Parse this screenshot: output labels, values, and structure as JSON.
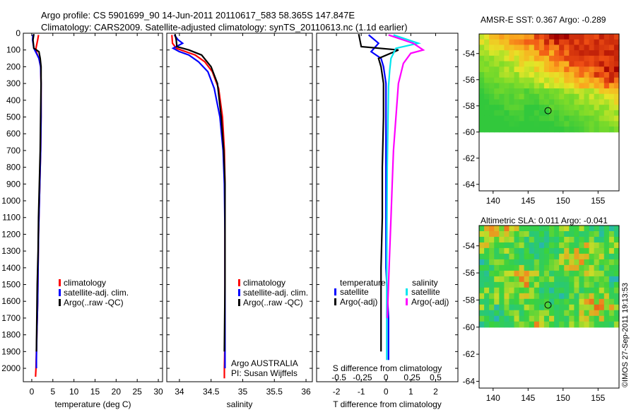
{
  "header": {
    "line1": "Argo profile: CS 5901699_90 14-Jun-2011 20110617_583 58.365S 147.847E",
    "line2": "Climatology: CARS2009. Satellite-adjusted climatology: synTS_20110613.nc (1.1d earlier)"
  },
  "footer": {
    "stamp": "©IMOS 27-Sep-2011 19:13:53",
    "credit1": "Argo AUSTRALIA",
    "credit2": "PI: Susan Wijffels"
  },
  "colors": {
    "climatology": "#ff0000",
    "satellite": "#0000ff",
    "argo": "#000000",
    "sat_salinity": "#00e5ee",
    "argo_salinity": "#ff00ff"
  },
  "chart_data": [
    {
      "type": "line",
      "panel": "temperature",
      "xlabel": "temperature (deg C)",
      "xlim": [
        -2,
        31
      ],
      "xticks": [
        0,
        5,
        10,
        15,
        20,
        25,
        30
      ],
      "ylim": [
        2080,
        0
      ],
      "yticks": [
        0,
        100,
        200,
        300,
        400,
        500,
        600,
        700,
        800,
        900,
        1000,
        1100,
        1200,
        1300,
        1400,
        1500,
        1600,
        1700,
        1800,
        1900,
        2000
      ],
      "legend": [
        "climatology",
        "satellite-adj. clim.",
        "Argo(..raw -QC)"
      ],
      "series": [
        {
          "name": "climatology",
          "color": "#ff0000",
          "x": [
            1.6,
            1.4,
            1.0,
            1.2,
            1.7,
            2.1,
            2.2,
            2.2,
            2.1,
            1.9,
            1.8,
            1.6,
            1.5,
            1.4,
            1.2,
            1.0,
            0.9
          ],
          "y": [
            10,
            40,
            90,
            120,
            150,
            200,
            300,
            500,
            700,
            900,
            1000,
            1200,
            1400,
            1600,
            1800,
            2000,
            2050
          ]
        },
        {
          "name": "satellite-adj. clim.",
          "color": "#0000ff",
          "x": [
            0.3,
            0.2,
            0.5,
            1.1,
            1.7,
            2.1,
            2.2,
            2.2,
            2.1,
            1.9,
            1.8,
            1.6,
            1.5,
            1.4,
            1.2,
            1.1,
            1.1
          ],
          "y": [
            10,
            40,
            90,
            120,
            150,
            200,
            300,
            500,
            700,
            900,
            1000,
            1200,
            1400,
            1600,
            1800,
            1950,
            2000
          ]
        },
        {
          "name": "Argo(..raw -QC)",
          "color": "#000000",
          "x": [
            0.5,
            0.3,
            0.5,
            1.7,
            2.0,
            2.2,
            2.2,
            2.1,
            2.0,
            1.8,
            1.6,
            1.5,
            1.3,
            1.2,
            1.1
          ],
          "y": [
            5,
            40,
            90,
            110,
            150,
            200,
            300,
            500,
            700,
            900,
            1100,
            1300,
            1500,
            1700,
            1900
          ]
        }
      ]
    },
    {
      "type": "line",
      "panel": "salinity",
      "xlabel": "salinity",
      "xlim": [
        33.8,
        36.1
      ],
      "xticks": [
        34,
        34.5,
        35,
        35.5,
        36
      ],
      "ylim": [
        2080,
        0
      ],
      "legend": [
        "climatology",
        "satellite-adj. clim.",
        "Argo(..raw -QC)"
      ],
      "series": [
        {
          "name": "climatology",
          "color": "#ff0000",
          "x": [
            33.88,
            33.89,
            33.95,
            34.1,
            34.25,
            34.4,
            34.52,
            34.62,
            34.68,
            34.71,
            34.72,
            34.72,
            34.72,
            34.72,
            34.71,
            34.71
          ],
          "y": [
            10,
            60,
            90,
            110,
            130,
            170,
            230,
            330,
            500,
            700,
            900,
            1200,
            1500,
            1800,
            2000,
            2060
          ]
        },
        {
          "name": "satellite-adj. clim.",
          "color": "#0000ff",
          "x": [
            33.92,
            33.98,
            34.05,
            33.95,
            33.9,
            34.0,
            34.15,
            34.3,
            34.45,
            34.55,
            34.64,
            34.69,
            34.71,
            34.72,
            34.72,
            34.72,
            34.72,
            34.72
          ],
          "y": [
            10,
            40,
            60,
            80,
            90,
            110,
            130,
            170,
            230,
            330,
            500,
            700,
            900,
            1200,
            1500,
            1800,
            1950,
            2000
          ]
        },
        {
          "name": "Argo(..raw -QC)",
          "color": "#000000",
          "x": [
            33.93,
            33.95,
            33.96,
            34.15,
            34.35,
            34.5,
            34.6,
            34.66,
            34.7,
            34.72,
            34.72,
            34.72,
            34.71
          ],
          "y": [
            5,
            40,
            80,
            100,
            130,
            200,
            300,
            500,
            700,
            900,
            1200,
            1500,
            1900
          ]
        }
      ]
    },
    {
      "type": "line",
      "panel": "difference",
      "xlabel": "T difference from climatology",
      "xlabel_top": "S difference from climatology",
      "xlim": [
        -2.8,
        2.9
      ],
      "xticks": [
        -2,
        -1,
        0,
        1,
        2
      ],
      "s_ticks": [
        "-0.5",
        "-0.25",
        "0",
        "0.25",
        "0.5"
      ],
      "ylim": [
        2080,
        0
      ],
      "legend_headers": [
        "temperature",
        "salinity"
      ],
      "legend": [
        "satellite",
        "Argo(-adj)",
        "satellite",
        "Argo(-adj)"
      ],
      "series": [
        {
          "name": "temperature satellite",
          "color": "#0000ff",
          "x": [
            -0.7,
            -0.3,
            -0.6,
            -0.2,
            -0.1,
            0.0,
            0.0,
            0.0,
            0.0,
            0.0,
            0.1,
            0.1
          ],
          "y": [
            10,
            60,
            110,
            150,
            200,
            300,
            500,
            800,
            1100,
            1400,
            1700,
            1950
          ]
        },
        {
          "name": "temperature Argo(-adj)",
          "color": "#000000",
          "x": [
            -1.1,
            -1.0,
            0.5,
            -0.3,
            -0.2,
            -0.1,
            -0.1,
            -0.15,
            -0.15,
            -0.2,
            -0.2,
            -0.2
          ],
          "y": [
            5,
            80,
            100,
            150,
            200,
            300,
            500,
            800,
            1100,
            1400,
            1700,
            1900
          ]
        },
        {
          "name": "salinity satellite",
          "color": "#00e5ee",
          "x": [
            0.3,
            1.3,
            0.4,
            0.2,
            0.15,
            0.1,
            0.08,
            0.05,
            0.04,
            0.03,
            0.03,
            0.03
          ],
          "y": [
            10,
            60,
            90,
            150,
            220,
            320,
            500,
            800,
            1100,
            1400,
            1700,
            1950
          ]
        },
        {
          "name": "salinity Argo(-adj)",
          "color": "#ff00ff",
          "x": [
            0.1,
            1.1,
            1.5,
            1.0,
            0.7,
            0.5,
            0.4,
            0.3,
            0.25,
            0.2,
            0.15,
            0.1,
            0.05
          ],
          "y": [
            10,
            60,
            100,
            120,
            180,
            300,
            500,
            700,
            900,
            1100,
            1300,
            1500,
            1700
          ]
        }
      ]
    },
    {
      "type": "heatmap",
      "panel": "sst-map",
      "title": "AMSR-E SST: 0.367 Argo: -0.289",
      "xticks": [
        140,
        145,
        150,
        155
      ],
      "yticks": [
        -54,
        -56,
        -58,
        -60,
        -62,
        -64
      ],
      "xlim": [
        138,
        158
      ],
      "ylim": [
        -64.5,
        -52.5
      ],
      "coverage_lat_min": -60,
      "argo_marker": {
        "lon": 147.85,
        "lat": -58.37
      }
    },
    {
      "type": "heatmap",
      "panel": "sla-map",
      "title": "Altimetric SLA: 0.011 Argo: -0.041",
      "xticks": [
        140,
        145,
        150,
        155
      ],
      "yticks": [
        -54,
        -56,
        -58,
        -60,
        -62,
        -64
      ],
      "xlim": [
        138,
        158
      ],
      "ylim": [
        -64.5,
        -52.5
      ],
      "coverage_lat_min": -60,
      "argo_marker": {
        "lon": 147.85,
        "lat": -58.37
      }
    }
  ]
}
